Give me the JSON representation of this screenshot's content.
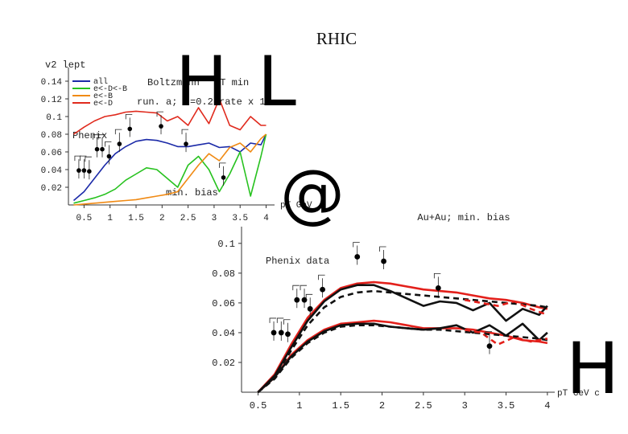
{
  "page": {
    "title": "RHIC",
    "glyphs": {
      "h_top": "H",
      "l_top": "L",
      "at_sign": "@",
      "h_bottom": "H"
    }
  },
  "colors": {
    "all": "#1b2aa8",
    "e_D_B": "#27c21f",
    "e_B": "#f08a14",
    "e_D": "#e02a1d",
    "model_red": "#e3201b",
    "model_black": "#111111"
  },
  "chart_data": [
    {
      "type": "line",
      "title": "",
      "ylabel": "v2 lept",
      "xlabel": "pT GeV",
      "xlim": [
        0.2,
        4.1
      ],
      "ylim": [
        0,
        0.15
      ],
      "x_ticks": [
        "0.5",
        "1",
        "1.5",
        "2",
        "2.5",
        "3",
        "3.5",
        "4"
      ],
      "y_ticks": [
        "0.02",
        "0.04",
        "0.06",
        "0.08",
        "0.1",
        "0.12",
        "0.14"
      ],
      "legend_position": "top-left",
      "legend": [
        "all",
        "e<-D<-B",
        "e<-B",
        "e<-D"
      ],
      "annotations": {
        "model": "Boltzmann",
        "params": "run. a;",
        "p_min": "pT min",
        "p_val": "=0.2",
        "rate": "rate x 1",
        "data_label": "Phenix",
        "bias_label": "min. bias"
      },
      "series": [
        {
          "name": "all",
          "color": "#1b2aa8",
          "x": [
            0.3,
            0.5,
            0.7,
            0.9,
            1.1,
            1.3,
            1.5,
            1.7,
            1.9,
            2.1,
            2.3,
            2.5,
            2.7,
            2.9,
            3.1,
            3.3,
            3.5,
            3.7,
            3.9,
            4.0
          ],
          "y": [
            0.005,
            0.015,
            0.03,
            0.045,
            0.058,
            0.066,
            0.072,
            0.074,
            0.073,
            0.07,
            0.066,
            0.066,
            0.068,
            0.07,
            0.065,
            0.066,
            0.06,
            0.07,
            0.068,
            0.08
          ]
        },
        {
          "name": "e<-D<-B",
          "color": "#27c21f",
          "x": [
            0.3,
            0.5,
            0.7,
            0.9,
            1.1,
            1.3,
            1.5,
            1.7,
            1.9,
            2.1,
            2.3,
            2.5,
            2.7,
            2.9,
            3.1,
            3.3,
            3.5,
            3.7,
            3.9,
            4.0
          ],
          "y": [
            0.002,
            0.005,
            0.008,
            0.012,
            0.018,
            0.028,
            0.035,
            0.042,
            0.04,
            0.03,
            0.02,
            0.045,
            0.055,
            0.04,
            0.015,
            0.035,
            0.06,
            0.01,
            0.055,
            0.08
          ]
        },
        {
          "name": "e<-B",
          "color": "#f08a14",
          "x": [
            0.3,
            0.5,
            0.7,
            0.9,
            1.1,
            1.3,
            1.5,
            1.7,
            1.9,
            2.1,
            2.3,
            2.5,
            2.7,
            2.9,
            3.1,
            3.3,
            3.5,
            3.7,
            3.9,
            4.0
          ],
          "y": [
            0.0,
            0.001,
            0.002,
            0.003,
            0.004,
            0.005,
            0.006,
            0.008,
            0.01,
            0.012,
            0.015,
            0.03,
            0.045,
            0.058,
            0.05,
            0.065,
            0.07,
            0.06,
            0.075,
            0.08
          ]
        },
        {
          "name": "e<-D",
          "color": "#e02a1d",
          "x": [
            0.3,
            0.5,
            0.7,
            0.9,
            1.1,
            1.3,
            1.5,
            1.7,
            1.9,
            2.1,
            2.3,
            2.5,
            2.7,
            2.9,
            3.1,
            3.3,
            3.5,
            3.7,
            3.9,
            4.0
          ],
          "y": [
            0.08,
            0.088,
            0.095,
            0.1,
            0.102,
            0.105,
            0.106,
            0.105,
            0.104,
            0.095,
            0.1,
            0.09,
            0.11,
            0.092,
            0.12,
            0.09,
            0.085,
            0.1,
            0.09,
            0.09
          ]
        }
      ],
      "points": {
        "x": [
          0.4,
          0.5,
          0.6,
          0.75,
          0.85,
          0.98,
          1.18,
          1.38,
          1.98,
          2.46,
          3.18
        ],
        "y": [
          0.039,
          0.039,
          0.038,
          0.063,
          0.063,
          0.055,
          0.069,
          0.086,
          0.089,
          0.069,
          0.031
        ]
      }
    },
    {
      "type": "line",
      "title": "Au+Au; min. bias",
      "ylabel": "",
      "xlabel": "pT GeV c",
      "xlim": [
        0.3,
        4.05
      ],
      "ylim": [
        0,
        0.108
      ],
      "x_ticks": [
        "0.5",
        "1",
        "1.5",
        "2",
        "2.5",
        "3",
        "3.5",
        "4"
      ],
      "y_ticks": [
        "0.02",
        "0.04",
        "0.06",
        "0.08",
        "0.1"
      ],
      "annotations": {
        "data_label": "Phenix data"
      },
      "series": [
        {
          "color": "#e3201b",
          "x": [
            0.5,
            0.7,
            0.9,
            1.1,
            1.3,
            1.5,
            1.7,
            1.9,
            2.1,
            2.3,
            2.5,
            2.7,
            2.9,
            3.1,
            3.3,
            3.5,
            3.7,
            3.9,
            4.0
          ],
          "y": [
            0.0,
            0.012,
            0.032,
            0.05,
            0.062,
            0.07,
            0.073,
            0.074,
            0.073,
            0.071,
            0.069,
            0.068,
            0.067,
            0.065,
            0.063,
            0.062,
            0.06,
            0.057,
            0.056
          ]
        },
        {
          "color": "#e3201b",
          "x": [
            0.5,
            0.7,
            0.9,
            1.1,
            1.3,
            1.5,
            1.7,
            1.9,
            2.1,
            2.3,
            2.5,
            2.7,
            2.9,
            3.1,
            3.3,
            3.5,
            3.7,
            3.9,
            4.0
          ],
          "y": [
            0.0,
            0.01,
            0.025,
            0.035,
            0.042,
            0.046,
            0.047,
            0.048,
            0.047,
            0.045,
            0.043,
            0.043,
            0.043,
            0.042,
            0.04,
            0.038,
            0.035,
            0.034,
            0.033
          ]
        },
        {
          "color": "#111111",
          "x": [
            0.5,
            0.7,
            0.9,
            1.1,
            1.3,
            1.5,
            1.7,
            1.9,
            2.1,
            2.3,
            2.5,
            2.7,
            2.9,
            3.1,
            3.3,
            3.5,
            3.7,
            3.9,
            4.0
          ],
          "y": [
            0.0,
            0.011,
            0.03,
            0.048,
            0.061,
            0.069,
            0.072,
            0.072,
            0.068,
            0.063,
            0.058,
            0.061,
            0.06,
            0.055,
            0.06,
            0.048,
            0.056,
            0.052,
            0.058
          ]
        },
        {
          "color": "#111111",
          "x": [
            0.5,
            0.7,
            0.9,
            1.1,
            1.3,
            1.5,
            1.7,
            1.9,
            2.1,
            2.3,
            2.5,
            2.7,
            2.9,
            3.1,
            3.3,
            3.5,
            3.7,
            3.9,
            4.0
          ],
          "y": [
            0.0,
            0.01,
            0.024,
            0.034,
            0.041,
            0.045,
            0.046,
            0.046,
            0.044,
            0.043,
            0.042,
            0.043,
            0.045,
            0.04,
            0.045,
            0.038,
            0.046,
            0.035,
            0.04
          ]
        },
        {
          "dashed": true,
          "color": "#111111",
          "x": [
            0.5,
            0.7,
            0.9,
            1.1,
            1.3,
            1.5,
            1.7,
            1.9,
            2.1,
            2.3,
            2.5,
            2.7,
            2.9,
            3.1,
            3.3,
            3.5,
            3.7,
            3.9,
            4.0
          ],
          "y": [
            0.0,
            0.01,
            0.028,
            0.045,
            0.057,
            0.064,
            0.067,
            0.068,
            0.067,
            0.066,
            0.065,
            0.064,
            0.063,
            0.062,
            0.061,
            0.06,
            0.059,
            0.058,
            0.057
          ]
        },
        {
          "dashed": true,
          "color": "#111111",
          "x": [
            0.5,
            0.7,
            0.9,
            1.1,
            1.3,
            1.5,
            1.7,
            1.9,
            2.1,
            2.3,
            2.5,
            2.7,
            2.9,
            3.1,
            3.3,
            3.5,
            3.7,
            3.9,
            4.0
          ],
          "y": [
            0.0,
            0.009,
            0.023,
            0.033,
            0.04,
            0.044,
            0.045,
            0.045,
            0.044,
            0.043,
            0.042,
            0.042,
            0.041,
            0.04,
            0.039,
            0.038,
            0.037,
            0.036,
            0.035
          ]
        },
        {
          "dashed": true,
          "color": "#e3201b",
          "x": [
            3.0,
            3.2,
            3.4,
            3.6,
            3.8,
            4.0
          ],
          "y": [
            0.062,
            0.06,
            0.058,
            0.061,
            0.056,
            0.052
          ]
        },
        {
          "dashed": true,
          "color": "#e3201b",
          "x": [
            3.0,
            3.2,
            3.4,
            3.6,
            3.8,
            4.0
          ],
          "y": [
            0.042,
            0.04,
            0.032,
            0.037,
            0.034,
            0.036
          ]
        }
      ],
      "points": {
        "x": [
          0.69,
          0.78,
          0.86,
          0.97,
          1.06,
          1.13,
          1.28,
          1.7,
          2.02,
          2.68,
          3.3
        ],
        "y": [
          0.04,
          0.04,
          0.039,
          0.062,
          0.062,
          0.056,
          0.069,
          0.091,
          0.088,
          0.07,
          0.031
        ]
      }
    }
  ]
}
